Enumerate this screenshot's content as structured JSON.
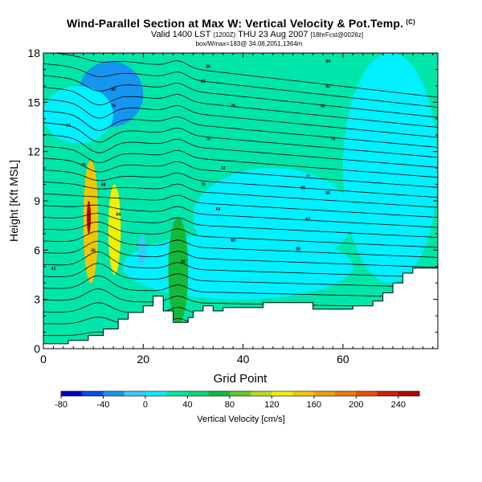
{
  "chart_data": {
    "type": "heatmap",
    "title": "Wind-Parallel Section at Max W: Vertical Velocity & Pot.Temp.",
    "title_mark": "(C)",
    "subtitle": {
      "main": "Valid 1400 LST",
      "code": "(1200Z)",
      "date": "THU 23 Aug 2007",
      "fcst": "[18hrFcst@0026z]"
    },
    "line3": "box/Wmax=183@ 34.08,2051,1364m",
    "xlabel": "Grid Point",
    "ylabel": "Height [Kft MSL]",
    "xlim": [
      0,
      79
    ],
    "ylim": [
      0,
      18
    ],
    "xticks": [
      "0",
      "20",
      "40",
      "60"
    ],
    "xtick_values": [
      0,
      20,
      40,
      60
    ],
    "yticks": [
      "0",
      "3",
      "6",
      "9",
      "12",
      "15",
      "18"
    ],
    "ytick_values": [
      0,
      3,
      6,
      9,
      12,
      15,
      18
    ],
    "terrain": [
      [
        0,
        0.3
      ],
      [
        5,
        0.3
      ],
      [
        5,
        0.5
      ],
      [
        9,
        0.5
      ],
      [
        9,
        0.8
      ],
      [
        12,
        0.8
      ],
      [
        12,
        1.2
      ],
      [
        15,
        1.2
      ],
      [
        15,
        1.8
      ],
      [
        17,
        1.8
      ],
      [
        17,
        2.2
      ],
      [
        20,
        2.2
      ],
      [
        20,
        2.6
      ],
      [
        22,
        2.6
      ],
      [
        22,
        3.2
      ],
      [
        24,
        3.2
      ],
      [
        24,
        2.3
      ],
      [
        26,
        2.3
      ],
      [
        26,
        1.6
      ],
      [
        29,
        1.6
      ],
      [
        29,
        1.9
      ],
      [
        30,
        1.9
      ],
      [
        30,
        2.3
      ],
      [
        32,
        2.3
      ],
      [
        32,
        2.6
      ],
      [
        34,
        2.6
      ],
      [
        34,
        2.3
      ],
      [
        36,
        2.3
      ],
      [
        36,
        2.5
      ],
      [
        44,
        2.5
      ],
      [
        44,
        2.8
      ],
      [
        54,
        2.8
      ],
      [
        54,
        2.4
      ],
      [
        62,
        2.4
      ],
      [
        62,
        2.6
      ],
      [
        66,
        2.6
      ],
      [
        66,
        2.9
      ],
      [
        68,
        2.9
      ],
      [
        68,
        3.4
      ],
      [
        70,
        3.4
      ],
      [
        70,
        4.0
      ],
      [
        72,
        4.0
      ],
      [
        72,
        4.6
      ],
      [
        74,
        4.6
      ],
      [
        74,
        4.9
      ],
      [
        79,
        4.9
      ]
    ],
    "colorbar": {
      "label": "Vertical Velocity [cm/s]",
      "ticks": [
        "-80",
        "-40",
        "0",
        "40",
        "80",
        "120",
        "160",
        "200",
        "240"
      ],
      "tick_values": [
        -80,
        -40,
        0,
        40,
        80,
        120,
        160,
        200,
        240
      ],
      "bins": [
        {
          "from": -80,
          "to": -60,
          "color": "#0000c8"
        },
        {
          "from": -60,
          "to": -40,
          "color": "#0050e6"
        },
        {
          "from": -40,
          "to": -20,
          "color": "#1496f0"
        },
        {
          "from": -20,
          "to": 0,
          "color": "#3cc8f5"
        },
        {
          "from": 0,
          "to": 20,
          "color": "#00f0ff"
        },
        {
          "from": 20,
          "to": 40,
          "color": "#00e6aa"
        },
        {
          "from": 40,
          "to": 60,
          "color": "#00d778"
        },
        {
          "from": 60,
          "to": 80,
          "color": "#14b93c"
        },
        {
          "from": 80,
          "to": 100,
          "color": "#64c828"
        },
        {
          "from": 100,
          "to": 120,
          "color": "#b4dc1e"
        },
        {
          "from": 120,
          "to": 140,
          "color": "#f0f000"
        },
        {
          "from": 140,
          "to": 160,
          "color": "#f0c800"
        },
        {
          "from": 160,
          "to": 180,
          "color": "#f0a000"
        },
        {
          "from": 180,
          "to": 200,
          "color": "#eb7d00"
        },
        {
          "from": 200,
          "to": 220,
          "color": "#e65000"
        },
        {
          "from": 220,
          "to": 240,
          "color": "#d21e00"
        },
        {
          "from": 240,
          "to": 260,
          "color": "#b40000"
        }
      ]
    },
    "fields": [
      {
        "name": "background",
        "value": 30
      },
      {
        "name": "upper-downdraft",
        "value": -40,
        "x": [
          7,
          20
        ],
        "y": [
          13.5,
          17.5
        ]
      },
      {
        "name": "upper-weak-sink",
        "value": 10,
        "x": [
          0,
          14
        ],
        "y": [
          12.5,
          16
        ]
      },
      {
        "name": "low-weak-sink",
        "value": 10,
        "x": [
          16,
          62
        ],
        "y": [
          3,
          7
        ]
      },
      {
        "name": "mid-weak-sink",
        "value": 10,
        "x": [
          30,
          62
        ],
        "y": [
          5,
          11
        ]
      },
      {
        "name": "right-weak-sink",
        "value": 5,
        "x": [
          60,
          79
        ],
        "y": [
          4,
          18
        ]
      },
      {
        "name": "updraft-core-1",
        "value": 150,
        "x": [
          8,
          11
        ],
        "y": [
          4,
          11.5
        ]
      },
      {
        "name": "updraft-core-1-max",
        "value": 245,
        "x": [
          8.7,
          9.5
        ],
        "y": [
          7,
          9
        ]
      },
      {
        "name": "updraft-core-2",
        "value": 130,
        "x": [
          13,
          15.5
        ],
        "y": [
          4.5,
          10
        ]
      },
      {
        "name": "updraft-2",
        "value": 60,
        "x": [
          25,
          29
        ],
        "y": [
          1.5,
          8
        ]
      },
      {
        "name": "downdraft-small",
        "value": -20,
        "x": [
          19,
          20.5
        ],
        "y": [
          5,
          7
        ]
      }
    ],
    "theta_contours": {
      "interval": 1,
      "values": [
        "36",
        "38",
        "40",
        "42",
        "44",
        "46",
        "48",
        "50",
        "52",
        "54",
        "56",
        "58",
        "60",
        "62",
        "64",
        "66",
        "68",
        "70",
        "72",
        "74",
        "76",
        "78",
        "80",
        "82",
        "84"
      ]
    },
    "contour_labels": [
      {
        "text": "84",
        "x": 57,
        "y": 17.5
      },
      {
        "text": "86",
        "x": 33,
        "y": 17.2
      },
      {
        "text": "84",
        "x": 32,
        "y": 16.3
      },
      {
        "text": "82",
        "x": 57,
        "y": 16
      },
      {
        "text": "80",
        "x": 56,
        "y": 14.8
      },
      {
        "text": "80",
        "x": 14,
        "y": 15.8
      },
      {
        "text": "78",
        "x": 38,
        "y": 14.8
      },
      {
        "text": "78",
        "x": 14,
        "y": 14.8
      },
      {
        "text": "76",
        "x": 33,
        "y": 12.8
      },
      {
        "text": "76",
        "x": 58,
        "y": 12.8
      },
      {
        "text": "74",
        "x": 5,
        "y": 13.6
      },
      {
        "text": "72",
        "x": 36,
        "y": 11
      },
      {
        "text": "72",
        "x": 53,
        "y": 10.5
      },
      {
        "text": "70",
        "x": 8,
        "y": 11.2
      },
      {
        "text": "70",
        "x": 32,
        "y": 10
      },
      {
        "text": "68",
        "x": 12,
        "y": 10
      },
      {
        "text": "68",
        "x": 52,
        "y": 9.8
      },
      {
        "text": "66",
        "x": 57,
        "y": 9.5
      },
      {
        "text": "64",
        "x": 35,
        "y": 8.5
      },
      {
        "text": "64",
        "x": 15,
        "y": 8.2
      },
      {
        "text": "62",
        "x": 53,
        "y": 7.9
      },
      {
        "text": "60",
        "x": 38,
        "y": 6.6
      },
      {
        "text": "58",
        "x": 51,
        "y": 6.1
      },
      {
        "text": "56",
        "x": 10,
        "y": 6
      },
      {
        "text": "50",
        "x": 28,
        "y": 5.3
      },
      {
        "text": "42",
        "x": 2,
        "y": 4.9
      }
    ]
  }
}
